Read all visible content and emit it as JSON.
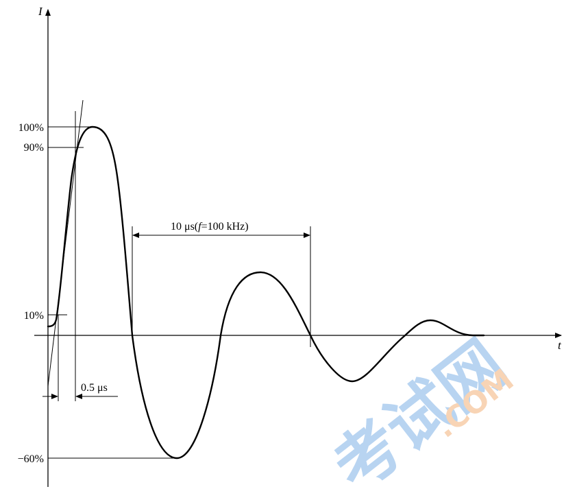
{
  "figure": {
    "y_axis_label": "I",
    "x_axis_label": "t",
    "levels": [
      {
        "label": "100%",
        "value": 100
      },
      {
        "label": "90%",
        "value": 90
      },
      {
        "label": "10%",
        "value": 10
      },
      {
        "label": "−60%",
        "value": -60
      }
    ],
    "rise_time_label": "0.5 μs",
    "period_label_prefix": "10 μs(",
    "period_label_f": "f",
    "period_label_suffix": "=100 kHz)"
  },
  "watermark": {
    "cn_text": "考试网",
    "en_text": ".COM",
    "colors": {
      "blue": "#7fb2e6",
      "orange": "#f3b27a"
    }
  }
}
